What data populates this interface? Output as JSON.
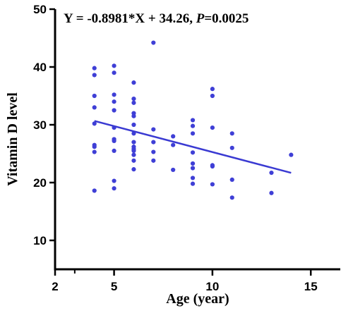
{
  "chart_data": {
    "type": "scatter",
    "annotation": {
      "prefix": "Y = -0.8981*X + 34.26, ",
      "p_symbol": "P",
      "p_suffix": "=0.0025"
    },
    "xlabel": "Age (year)",
    "ylabel": "Vitamin D level",
    "xlim": [
      2,
      16.5
    ],
    "ylim": [
      5,
      50
    ],
    "x_ticks": [
      2,
      5,
      10,
      15
    ],
    "x_minor_ticks": [
      3
    ],
    "y_ticks": [
      10,
      20,
      30,
      40,
      50
    ],
    "grid": false,
    "points": [
      {
        "x": 4,
        "y": 39.8
      },
      {
        "x": 4,
        "y": 38.6
      },
      {
        "x": 4,
        "y": 35.0
      },
      {
        "x": 4,
        "y": 33.0
      },
      {
        "x": 4,
        "y": 30.2
      },
      {
        "x": 4,
        "y": 26.5
      },
      {
        "x": 4,
        "y": 26.2
      },
      {
        "x": 4,
        "y": 25.3
      },
      {
        "x": 4,
        "y": 18.6
      },
      {
        "x": 5,
        "y": 40.2
      },
      {
        "x": 5,
        "y": 39.0
      },
      {
        "x": 5,
        "y": 35.2
      },
      {
        "x": 5,
        "y": 34.0
      },
      {
        "x": 5,
        "y": 32.5
      },
      {
        "x": 5,
        "y": 29.5
      },
      {
        "x": 5,
        "y": 27.5
      },
      {
        "x": 5,
        "y": 27.2
      },
      {
        "x": 5,
        "y": 25.5
      },
      {
        "x": 5,
        "y": 20.3
      },
      {
        "x": 5,
        "y": 19.0
      },
      {
        "x": 6,
        "y": 37.3
      },
      {
        "x": 6,
        "y": 34.5
      },
      {
        "x": 6,
        "y": 33.8
      },
      {
        "x": 6,
        "y": 32.0
      },
      {
        "x": 6,
        "y": 31.5
      },
      {
        "x": 6,
        "y": 30.0
      },
      {
        "x": 6,
        "y": 28.5
      },
      {
        "x": 6,
        "y": 27.0
      },
      {
        "x": 6,
        "y": 26.2
      },
      {
        "x": 6,
        "y": 25.8
      },
      {
        "x": 6,
        "y": 25.5
      },
      {
        "x": 6,
        "y": 24.8
      },
      {
        "x": 6,
        "y": 23.8
      },
      {
        "x": 6,
        "y": 22.3
      },
      {
        "x": 7,
        "y": 44.2
      },
      {
        "x": 7,
        "y": 29.2
      },
      {
        "x": 7,
        "y": 27.0
      },
      {
        "x": 7,
        "y": 25.3
      },
      {
        "x": 7,
        "y": 23.8
      },
      {
        "x": 8,
        "y": 28.0
      },
      {
        "x": 8,
        "y": 26.5
      },
      {
        "x": 8,
        "y": 22.2
      },
      {
        "x": 9,
        "y": 30.8
      },
      {
        "x": 9,
        "y": 29.8
      },
      {
        "x": 9,
        "y": 28.5
      },
      {
        "x": 9,
        "y": 25.2
      },
      {
        "x": 9,
        "y": 23.3
      },
      {
        "x": 9,
        "y": 22.5
      },
      {
        "x": 9,
        "y": 20.8
      },
      {
        "x": 9,
        "y": 19.8
      },
      {
        "x": 10,
        "y": 36.2
      },
      {
        "x": 10,
        "y": 35.0
      },
      {
        "x": 10,
        "y": 29.5
      },
      {
        "x": 10,
        "y": 23.0
      },
      {
        "x": 10,
        "y": 22.8
      },
      {
        "x": 10,
        "y": 19.7
      },
      {
        "x": 11,
        "y": 28.5
      },
      {
        "x": 11,
        "y": 26.0
      },
      {
        "x": 11,
        "y": 20.5
      },
      {
        "x": 11,
        "y": 17.4
      },
      {
        "x": 13,
        "y": 21.7
      },
      {
        "x": 13,
        "y": 18.2
      },
      {
        "x": 14,
        "y": 24.8
      }
    ],
    "regression": {
      "slope": -0.8981,
      "intercept": 34.26,
      "x_range": [
        4,
        14
      ]
    },
    "colors": {
      "point": "#3f3fd6",
      "line": "#3a3ad2",
      "axis": "#000000"
    }
  }
}
